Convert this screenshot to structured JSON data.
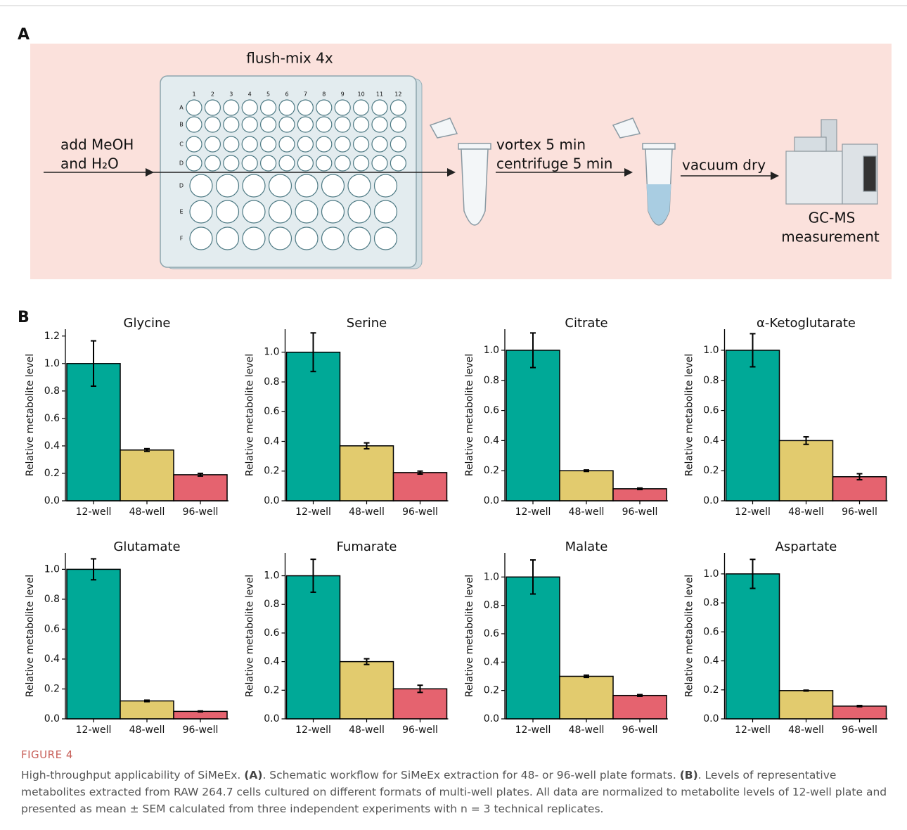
{
  "panel_a": {
    "label": "A",
    "step_mix": "flush-mix 4x",
    "add_line1": "add MeOH",
    "add_line2": "and H₂O",
    "plate_columns": [
      "1",
      "2",
      "3",
      "4",
      "5",
      "6",
      "7",
      "8",
      "9",
      "10",
      "11",
      "12"
    ],
    "plate_rows": [
      "A",
      "B",
      "C",
      "D",
      "D",
      "E",
      "F"
    ],
    "vortex": "vortex 5 min",
    "centrifuge": "centrifuge 5 min",
    "dry": "vacuum dry",
    "instrument_line1": "GC-MS",
    "instrument_line2": "measurement"
  },
  "panel_b": {
    "label": "B"
  },
  "chart_data": [
    {
      "type": "bar",
      "title": "Glycine",
      "y_label": "Relative metabolite level",
      "categories": [
        "12-well",
        "48-well",
        "96-well"
      ],
      "colors": [
        "#00a997",
        "#e2cb6e",
        "#e5636f"
      ],
      "values": [
        1.0,
        0.37,
        0.19
      ],
      "errors": [
        0.165,
        0.01,
        0.01
      ],
      "ylim": [
        0,
        1.25
      ],
      "yticks": [
        {
          "value": 0,
          "label": "0.0"
        },
        0.2,
        0.4,
        0.6,
        0.8,
        {
          "value": 1,
          "label": "1.0"
        },
        1.2
      ]
    },
    {
      "type": "bar",
      "title": "Serine",
      "y_label": "Relative metabolite level",
      "categories": [
        "12-well",
        "48-well",
        "96-well"
      ],
      "colors": [
        "#00a997",
        "#e2cb6e",
        "#e5636f"
      ],
      "values": [
        1.0,
        0.37,
        0.19
      ],
      "errors": [
        0.13,
        0.02,
        0.01
      ],
      "ylim": [
        0,
        1.155
      ],
      "yticks": [
        {
          "value": 0,
          "label": "0.0"
        },
        0.2,
        0.4,
        0.6,
        0.8,
        {
          "value": 1,
          "label": "1.0"
        }
      ]
    },
    {
      "type": "bar",
      "title": "Citrate",
      "y_label": "Relative metabolite level",
      "categories": [
        "12-well",
        "48-well",
        "96-well"
      ],
      "colors": [
        "#00a997",
        "#e2cb6e",
        "#e5636f"
      ],
      "values": [
        1.0,
        0.2,
        0.08
      ],
      "errors": [
        0.115,
        0.005,
        0.005
      ],
      "ylim": [
        0,
        1.14
      ],
      "yticks": [
        {
          "value": 0,
          "label": "0.0"
        },
        0.2,
        0.4,
        0.6,
        0.8,
        {
          "value": 1,
          "label": "1.0"
        }
      ]
    },
    {
      "type": "bar",
      "title": "α-Ketoglutarate",
      "y_label": "Relative metabolite level",
      "categories": [
        "12-well",
        "48-well",
        "96-well"
      ],
      "colors": [
        "#00a997",
        "#e2cb6e",
        "#e5636f"
      ],
      "values": [
        1.0,
        0.4,
        0.16
      ],
      "errors": [
        0.11,
        0.025,
        0.02
      ],
      "ylim": [
        0,
        1.14
      ],
      "yticks": [
        {
          "value": 0,
          "label": "0.0"
        },
        0.2,
        0.4,
        0.6,
        0.8,
        {
          "value": 1,
          "label": "1.0"
        }
      ]
    },
    {
      "type": "bar",
      "title": "Glutamate",
      "y_label": "Relative metabolite level",
      "categories": [
        "12-well",
        "48-well",
        "96-well"
      ],
      "colors": [
        "#00a997",
        "#e2cb6e",
        "#e5636f"
      ],
      "values": [
        1.0,
        0.12,
        0.05
      ],
      "errors": [
        0.07,
        0.005,
        0.003
      ],
      "ylim": [
        0,
        1.11
      ],
      "yticks": [
        {
          "value": 0,
          "label": "0.0"
        },
        0.2,
        0.4,
        0.6,
        0.8,
        {
          "value": 1,
          "label": "1.0"
        }
      ]
    },
    {
      "type": "bar",
      "title": "Fumarate",
      "y_label": "Relative metabolite level",
      "categories": [
        "12-well",
        "48-well",
        "96-well"
      ],
      "colors": [
        "#00a997",
        "#e2cb6e",
        "#e5636f"
      ],
      "values": [
        1.0,
        0.4,
        0.21
      ],
      "errors": [
        0.115,
        0.02,
        0.025
      ],
      "ylim": [
        0,
        1.16
      ],
      "yticks": [
        {
          "value": 0,
          "label": "0.0"
        },
        0.2,
        0.4,
        0.6,
        0.8,
        {
          "value": 1,
          "label": "1.0"
        }
      ]
    },
    {
      "type": "bar",
      "title": "Malate",
      "y_label": "Relative metabolite level",
      "categories": [
        "12-well",
        "48-well",
        "96-well"
      ],
      "colors": [
        "#00a997",
        "#e2cb6e",
        "#e5636f"
      ],
      "values": [
        1.0,
        0.3,
        0.165
      ],
      "errors": [
        0.12,
        0.008,
        0.006
      ],
      "ylim": [
        0,
        1.17
      ],
      "yticks": [
        {
          "value": 0,
          "label": "0.0"
        },
        0.2,
        0.4,
        0.6,
        0.8,
        {
          "value": 1,
          "label": "1.0"
        }
      ]
    },
    {
      "type": "bar",
      "title": "Aspartate",
      "y_label": "Relative metabolite level",
      "categories": [
        "12-well",
        "48-well",
        "96-well"
      ],
      "colors": [
        "#00a997",
        "#e2cb6e",
        "#e5636f"
      ],
      "values": [
        1.0,
        0.195,
        0.088
      ],
      "errors": [
        0.1,
        0.003,
        0.004
      ],
      "ylim": [
        0,
        1.145
      ],
      "yticks": [
        {
          "value": 0,
          "label": "0.0"
        },
        0.2,
        0.4,
        0.6,
        0.8,
        {
          "value": 1,
          "label": "1.0"
        }
      ]
    }
  ],
  "caption": {
    "label": "FIGURE 4",
    "segments": [
      "High-throughput applicability of SiMeEx. ",
      "(A)",
      ". Schematic workflow for SiMeEx extraction for 48- or 96-well plate formats. ",
      "(B)",
      ". Levels of representative metabolites extracted from RAW 264.7 cells cultured on different formats of multi-well plates. All data are normalized to metabolite levels of 12-well plate and presented as mean ± SEM calculated from three independent experiments with n = 3 technical replicates."
    ]
  }
}
